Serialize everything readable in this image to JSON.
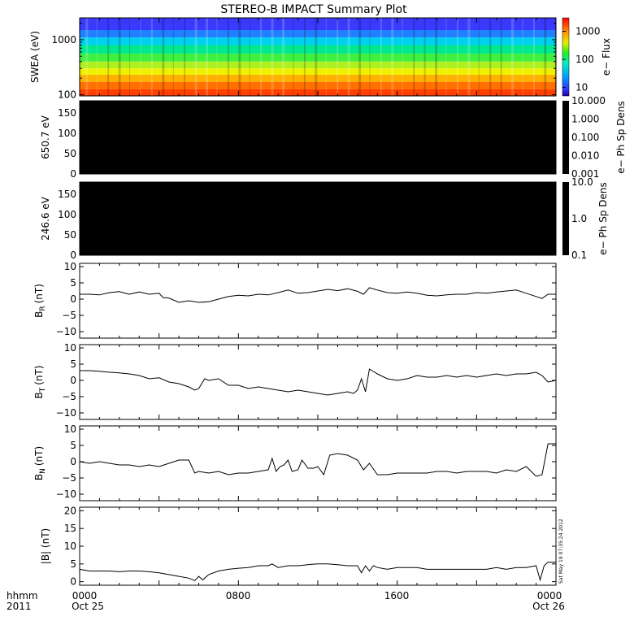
{
  "title": "STEREO-B IMPACT Summary Plot",
  "footer": {
    "row1_label": "hhmm",
    "row2_label": "2011",
    "ticks": [
      "0000",
      "0800",
      "1600",
      "0000"
    ],
    "dates": [
      "Oct 25",
      "Oct 26"
    ]
  },
  "timestamp": "Sat May 19 07:35:24 2012",
  "colors": {
    "background": "#ffffff",
    "axes": "#000000",
    "empty_panel": "#000000"
  },
  "chart_data": [
    {
      "type": "heatmap",
      "name": "swea",
      "ylabel": "SWEA (eV)",
      "yscale": "log",
      "ylim": [
        95,
        2500
      ],
      "yticks": [
        100,
        1000
      ],
      "ytick_labels": [
        "100",
        "1000"
      ],
      "xlim_hours": [
        0,
        24
      ],
      "colorbar": {
        "label": "e− Flux",
        "scale": "log",
        "range": [
          5,
          3000
        ],
        "ticks": [
          10,
          100,
          1000
        ],
        "tick_labels": [
          "10",
          "100",
          "1000"
        ]
      },
      "bands_ev": [
        {
          "range": [
            1500,
            2500
          ],
          "color": "#3a3aff"
        },
        {
          "range": [
            1100,
            1500
          ],
          "color": "#2080ff"
        },
        {
          "range": [
            800,
            1100
          ],
          "color": "#00d0f0"
        },
        {
          "range": [
            560,
            800
          ],
          "color": "#00e890"
        },
        {
          "range": [
            400,
            560
          ],
          "color": "#40f040"
        },
        {
          "range": [
            300,
            400
          ],
          "color": "#b0f020"
        },
        {
          "range": [
            230,
            300
          ],
          "color": "#f0f000"
        },
        {
          "range": [
            170,
            230
          ],
          "color": "#ffb000"
        },
        {
          "range": [
            125,
            170
          ],
          "color": "#ff7000"
        },
        {
          "range": [
            95,
            125
          ],
          "color": "#ff4000"
        }
      ]
    },
    {
      "type": "heatmap",
      "name": "pad650",
      "ylabel": "650.7 eV",
      "ylim": [
        0,
        180
      ],
      "yticks": [
        0,
        50,
        100,
        150
      ],
      "ytick_labels": [
        "0",
        "50",
        "100",
        "150"
      ],
      "colorbar": {
        "label": "e− Ph Sp Dens",
        "scale": "log",
        "range": [
          0.001,
          10
        ],
        "ticks": [
          0.001,
          0.01,
          0.1,
          1,
          10
        ],
        "tick_labels": [
          "0.001",
          "0.010",
          "0.100",
          "1.000",
          "10.000"
        ]
      }
    },
    {
      "type": "heatmap",
      "name": "pad246",
      "ylabel": "246.6 eV",
      "ylim": [
        0,
        180
      ],
      "yticks": [
        0,
        50,
        100,
        150
      ],
      "ytick_labels": [
        "0",
        "50",
        "100",
        "150"
      ],
      "colorbar": {
        "label": "e− Ph Sp Dens",
        "scale": "log",
        "range": [
          0.1,
          10
        ],
        "ticks": [
          0.1,
          1,
          10
        ],
        "tick_labels": [
          "0.1",
          "1.0",
          "10.0"
        ]
      }
    },
    {
      "type": "line",
      "name": "br",
      "ylabel_main": "B",
      "ylabel_sub": "R",
      "ylabel_unit": "(nT)",
      "ylim": [
        -12,
        11
      ],
      "yticks": [
        -10,
        -5,
        0,
        5,
        10
      ],
      "ytick_labels": [
        "−10",
        "−5",
        "0",
        "5",
        "10"
      ],
      "x_hours": [
        0,
        0.5,
        1,
        1.5,
        2,
        2.5,
        3,
        3.5,
        4,
        4.2,
        4.5,
        5,
        5.5,
        6,
        6.5,
        7,
        7.5,
        8,
        8.5,
        9,
        9.5,
        10,
        10.5,
        11,
        11.5,
        12,
        12.5,
        13,
        13.5,
        14,
        14.3,
        14.6,
        15,
        15.5,
        16,
        16.5,
        17,
        17.5,
        18,
        18.5,
        19,
        19.5,
        20,
        20.5,
        21,
        21.5,
        22,
        22.5,
        23,
        23.3,
        23.6,
        24
      ],
      "values": [
        1.5,
        1.5,
        1.3,
        2.0,
        2.3,
        1.5,
        2.2,
        1.5,
        1.8,
        0.5,
        0.3,
        -1.0,
        -0.5,
        -1.0,
        -0.8,
        0.0,
        0.8,
        1.2,
        1.0,
        1.5,
        1.3,
        2.0,
        2.8,
        1.8,
        2.0,
        2.5,
        3.0,
        2.6,
        3.2,
        2.4,
        1.5,
        3.5,
        2.8,
        2.0,
        1.8,
        2.2,
        1.8,
        1.2,
        1.0,
        1.3,
        1.5,
        1.5,
        2.0,
        1.8,
        2.2,
        2.5,
        2.8,
        1.8,
        0.8,
        0.2,
        1.5,
        1.5
      ]
    },
    {
      "type": "line",
      "name": "bt",
      "ylabel_main": "B",
      "ylabel_sub": "T",
      "ylabel_unit": "(nT)",
      "ylim": [
        -12,
        11
      ],
      "yticks": [
        -10,
        -5,
        0,
        5,
        10
      ],
      "ytick_labels": [
        "−10",
        "−5",
        "0",
        "5",
        "10"
      ],
      "x_hours": [
        0,
        0.5,
        1,
        1.5,
        2,
        2.5,
        3,
        3.5,
        4,
        4.5,
        5,
        5.5,
        5.8,
        6,
        6.3,
        6.5,
        7,
        7.5,
        8,
        8.5,
        9,
        9.5,
        10,
        10.5,
        11,
        11.5,
        12,
        12.5,
        13,
        13.5,
        13.8,
        14,
        14.2,
        14.4,
        14.6,
        15,
        15.5,
        16,
        16.5,
        17,
        17.5,
        18,
        18.5,
        19,
        19.5,
        20,
        20.5,
        21,
        21.5,
        22,
        22.5,
        23,
        23.3,
        23.6,
        24
      ],
      "values": [
        3.0,
        3.0,
        2.8,
        2.5,
        2.3,
        2.0,
        1.5,
        0.5,
        0.8,
        -0.5,
        -1.0,
        -2.0,
        -3.0,
        -2.5,
        0.5,
        0.0,
        0.5,
        -1.5,
        -1.5,
        -2.5,
        -2.0,
        -2.5,
        -3.0,
        -3.5,
        -3.0,
        -3.5,
        -4.0,
        -4.5,
        -4.0,
        -3.5,
        -4.0,
        -3.0,
        0.5,
        -3.5,
        3.5,
        2.0,
        0.5,
        0.0,
        0.5,
        1.5,
        1.0,
        1.0,
        1.5,
        1.0,
        1.5,
        1.0,
        1.5,
        2.0,
        1.5,
        2.0,
        2.0,
        2.5,
        1.5,
        -0.5,
        0.0
      ]
    },
    {
      "type": "line",
      "name": "bn",
      "ylabel_main": "B",
      "ylabel_sub": "N",
      "ylabel_unit": "(nT)",
      "ylim": [
        -12,
        11
      ],
      "yticks": [
        -10,
        -5,
        0,
        5,
        10
      ],
      "ytick_labels": [
        "−10",
        "−5",
        "0",
        "5",
        "10"
      ],
      "x_hours": [
        0,
        0.5,
        1,
        1.5,
        2,
        2.5,
        3,
        3.5,
        4,
        4.5,
        5,
        5.5,
        5.8,
        6,
        6.5,
        7,
        7.5,
        8,
        8.5,
        9,
        9.5,
        9.7,
        9.9,
        10.1,
        10.3,
        10.5,
        10.7,
        11,
        11.2,
        11.5,
        11.8,
        12,
        12.3,
        12.6,
        13,
        13.5,
        14,
        14.3,
        14.6,
        15,
        15.5,
        16,
        16.5,
        17,
        17.5,
        18,
        18.5,
        19,
        19.5,
        20,
        20.5,
        21,
        21.5,
        22,
        22.5,
        23,
        23.3,
        23.6,
        24
      ],
      "values": [
        0.0,
        -0.5,
        0.0,
        -0.5,
        -1.0,
        -1.0,
        -1.5,
        -1.0,
        -1.5,
        -0.5,
        0.5,
        0.5,
        -3.5,
        -3.0,
        -3.5,
        -3.0,
        -4.0,
        -3.5,
        -3.5,
        -3.0,
        -2.5,
        1.0,
        -3.0,
        -1.5,
        -1.0,
        0.5,
        -3.0,
        -2.5,
        0.5,
        -2.0,
        -2.0,
        -1.5,
        -4.0,
        2.0,
        2.5,
        2.0,
        0.5,
        -2.5,
        -0.5,
        -4.0,
        -4.0,
        -3.5,
        -3.5,
        -3.5,
        -3.5,
        -3.0,
        -3.0,
        -3.5,
        -3.0,
        -3.0,
        -3.0,
        -3.5,
        -2.5,
        -3.0,
        -1.5,
        -4.5,
        -4.0,
        5.5,
        5.5
      ]
    },
    {
      "type": "line",
      "name": "bmag",
      "ylabel": "|B| (nT)",
      "ylim": [
        -1,
        21
      ],
      "yticks": [
        0,
        5,
        10,
        15,
        20
      ],
      "ytick_labels": [
        "0",
        "5",
        "10",
        "15",
        "20"
      ],
      "x_hours": [
        0,
        0.5,
        1,
        1.5,
        2,
        2.5,
        3,
        3.5,
        4,
        4.5,
        5,
        5.5,
        5.8,
        6,
        6.2,
        6.5,
        7,
        7.5,
        8,
        8.5,
        9,
        9.5,
        9.7,
        10,
        10.5,
        11,
        11.5,
        12,
        12.5,
        13,
        13.5,
        14,
        14.2,
        14.4,
        14.6,
        14.8,
        15,
        15.5,
        16,
        16.5,
        17,
        17.5,
        18,
        18.5,
        19,
        19.5,
        20,
        20.5,
        21,
        21.5,
        22,
        22.5,
        23,
        23.2,
        23.4,
        23.6,
        24
      ],
      "values": [
        3.5,
        3.0,
        3.0,
        3.0,
        2.8,
        3.0,
        3.0,
        2.8,
        2.5,
        2.0,
        1.5,
        1.0,
        0.3,
        1.5,
        0.5,
        2.0,
        3.0,
        3.5,
        3.8,
        4.0,
        4.5,
        4.5,
        5.0,
        4.0,
        4.5,
        4.5,
        4.8,
        5.0,
        5.0,
        4.8,
        4.5,
        4.5,
        2.5,
        4.5,
        3.0,
        4.5,
        4.0,
        3.5,
        4.0,
        4.0,
        4.0,
        3.5,
        3.5,
        3.5,
        3.5,
        3.5,
        3.5,
        3.5,
        4.0,
        3.5,
        4.0,
        4.0,
        4.5,
        0.5,
        4.5,
        5.5,
        5.5
      ]
    }
  ]
}
